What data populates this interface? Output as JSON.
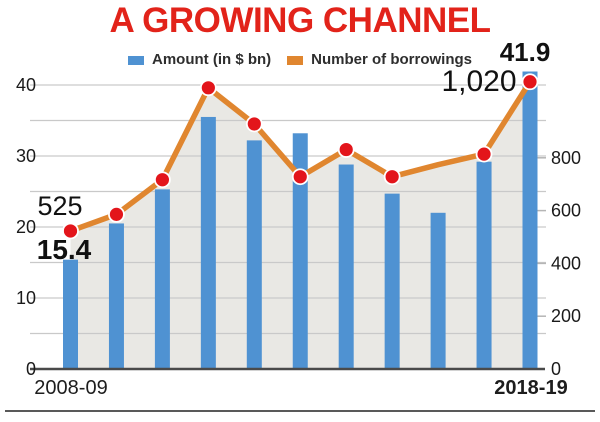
{
  "title": "A GROWING CHANNEL",
  "title_color": "#e2231a",
  "legend": {
    "items": [
      {
        "label": "Amount (in $ bn)",
        "color": "#4f92d2"
      },
      {
        "label": "Number of borrowings",
        "color": "#e0862f"
      }
    ]
  },
  "chart_data": {
    "type": "combo-bar-line",
    "n_categories": 11,
    "x_axis": {
      "labels_visible": [
        {
          "index": 0,
          "label": "2008-09",
          "bold": false
        },
        {
          "index": 10,
          "label": "2018-19",
          "bold": true
        }
      ]
    },
    "left_axis": {
      "ticks": [
        0,
        10,
        20,
        30,
        40
      ],
      "minor_gridlines": [
        5,
        15,
        25,
        35
      ],
      "range": [
        0,
        42
      ]
    },
    "right_axis": {
      "ticks": [
        0,
        200,
        400,
        600,
        800
      ],
      "range": [
        0,
        1050
      ]
    },
    "series": [
      {
        "name": "Amount (in $ bn)",
        "type": "bar",
        "axis": "left",
        "color": "#4f92d2",
        "values": [
          15.4,
          20.5,
          25.3,
          35.5,
          32.2,
          33.2,
          28.8,
          24.7,
          22.0,
          29.2,
          41.9
        ]
      },
      {
        "name": "Number of borrowings",
        "type": "line",
        "axis": "right",
        "color": "#e0862f",
        "marker_color": "#e3151b",
        "marker_hidden_indices": [
          8
        ],
        "values": [
          525,
          580,
          695,
          1000,
          880,
          705,
          795,
          705,
          745,
          780,
          1020
        ]
      }
    ],
    "annotations": [
      {
        "text": "525",
        "bold": false,
        "attached_to": "first line point"
      },
      {
        "text": "15.4",
        "bold": true,
        "attached_to": "first bar"
      },
      {
        "text": "1,020",
        "bold": false,
        "attached_to": "last line point"
      },
      {
        "text": "41.9",
        "bold": true,
        "attached_to": "last bar"
      }
    ],
    "area_under_line_color": "#e9e8e4",
    "gridline_color": "#c9c9c9",
    "baseline_color": "#4a4a4a",
    "grid": true,
    "legend_position": "top"
  }
}
